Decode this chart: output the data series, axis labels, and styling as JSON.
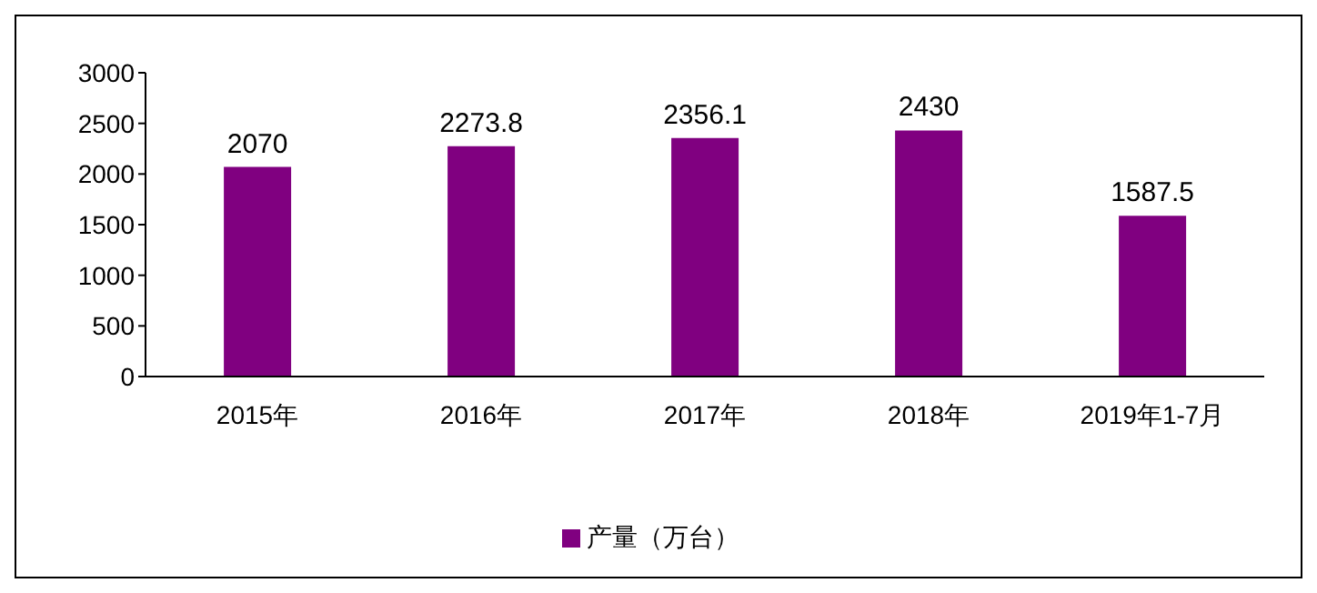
{
  "chart_data": {
    "type": "bar",
    "categories": [
      "2015年",
      "2016年",
      "2017年",
      "2018年",
      "2019年1-7月"
    ],
    "series": [
      {
        "name": "产量（万台）",
        "color": "#800080",
        "values": [
          2070,
          2273.8,
          2356.1,
          2430,
          1587.5
        ]
      }
    ],
    "ylim": [
      0,
      3000
    ],
    "yticks": [
      0,
      500,
      1000,
      1500,
      2000,
      2500,
      3000
    ],
    "grid": false,
    "legend": "bottom",
    "data_labels": true
  }
}
